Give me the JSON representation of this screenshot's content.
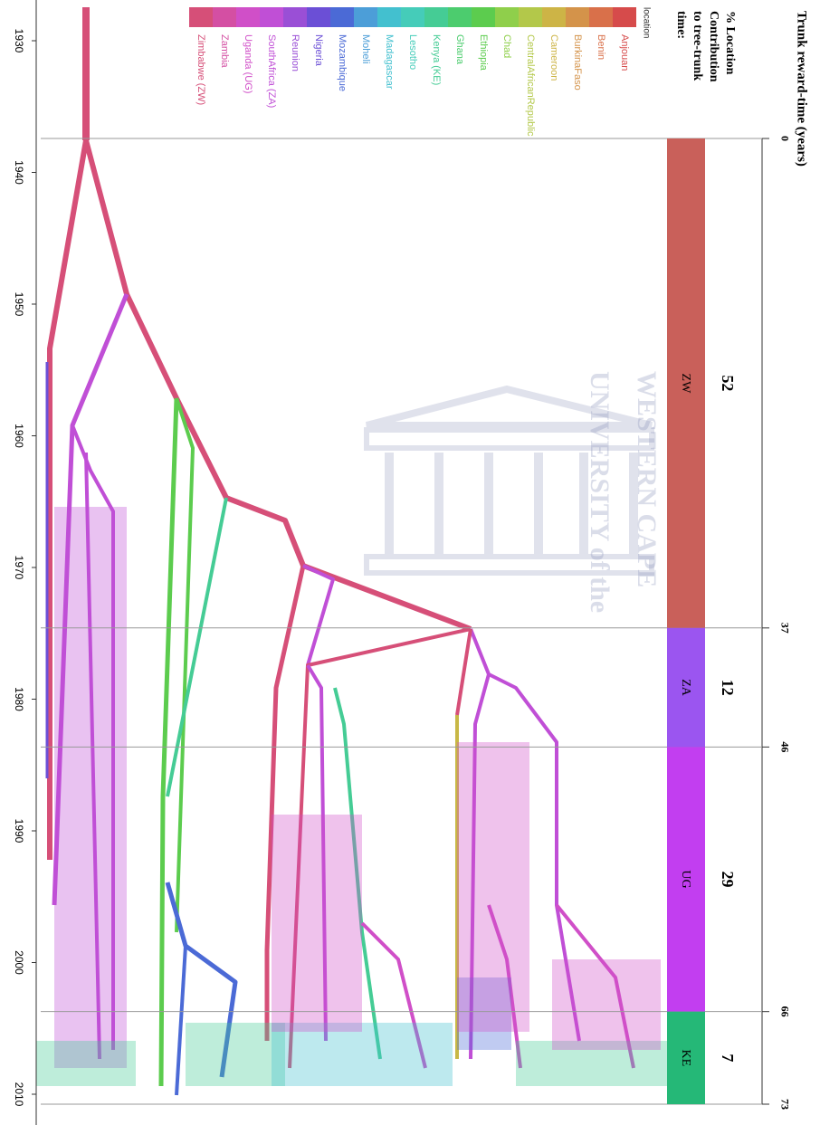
{
  "legend": {
    "title": "location",
    "items": [
      {
        "label": "Anjouan",
        "color": "#d64b4b"
      },
      {
        "label": "Benin",
        "color": "#d9704a"
      },
      {
        "label": "BurkinaFaso",
        "color": "#d4934a"
      },
      {
        "label": "Cameroon",
        "color": "#cdb446"
      },
      {
        "label": "CentralAfricanRepublic",
        "color": "#b3c84a"
      },
      {
        "label": "Chad",
        "color": "#8fcf4b"
      },
      {
        "label": "Ethiopia",
        "color": "#5ccc4e"
      },
      {
        "label": "Ghana",
        "color": "#4ccc6e"
      },
      {
        "label": "Kenya (KE)",
        "color": "#45cc95"
      },
      {
        "label": "Lesotho",
        "color": "#45ccb9"
      },
      {
        "label": "Madagascar",
        "color": "#43c0cf"
      },
      {
        "label": "Moheli",
        "color": "#4c9ed8"
      },
      {
        "label": "Mozambique",
        "color": "#4b6ad6"
      },
      {
        "label": "Nigeria",
        "color": "#6b4fd6"
      },
      {
        "label": "Reunion",
        "color": "#9a4fd6"
      },
      {
        "label": "SouthAfrica (ZA)",
        "color": "#c04fd6"
      },
      {
        "label": "Uganda (UG)",
        "color": "#d04fc8"
      },
      {
        "label": "Zambia",
        "color": "#d44fa3"
      },
      {
        "label": "Zimbabwe (ZW)",
        "color": "#d64f78"
      }
    ]
  },
  "time_axis": {
    "ticks": [
      1930,
      1940,
      1950,
      1960,
      1970,
      1980,
      1990,
      2000,
      2010
    ]
  },
  "trunk": {
    "title_lines": [
      "% Location",
      "Contribution",
      "to tree-trunk",
      "time:"
    ],
    "segments": [
      {
        "code": "ZW",
        "percent": 52,
        "color": "#c9605a"
      },
      {
        "code": "ZA",
        "percent": 12,
        "color": "#9b55f0"
      },
      {
        "code": "UG",
        "percent": 29,
        "color": "#c23ef0"
      },
      {
        "code": "KE",
        "percent": 7,
        "color": "#25b877"
      }
    ]
  },
  "trunk_axis": {
    "title": "Trunk reward-time (years)",
    "ticks": [
      0,
      37,
      46,
      66,
      73
    ]
  },
  "watermark": {
    "line1": "UNIVERSITY of the",
    "line2": "WESTERN CAPE"
  }
}
